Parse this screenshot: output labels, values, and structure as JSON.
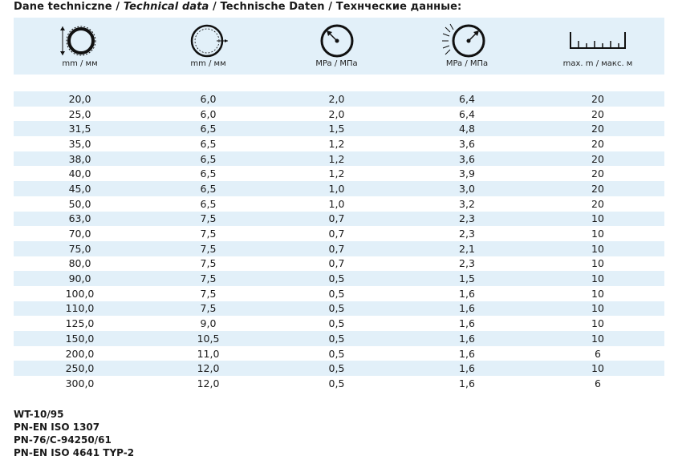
{
  "title": {
    "part1": "Dane techniczne / ",
    "part2": "Technical data",
    "part3": " / Technische Daten / Технческие данные:"
  },
  "columns": [
    {
      "icon": "inner-diameter-icon",
      "unit": "mm / мм"
    },
    {
      "icon": "wall-thickness-icon",
      "unit": "mm / мм"
    },
    {
      "icon": "working-pressure-gauge-icon",
      "unit": "MPa / МПа"
    },
    {
      "icon": "burst-pressure-gauge-icon",
      "unit": "MPa / МПа"
    },
    {
      "icon": "length-ruler-icon",
      "unit": "max. m / макс. м"
    }
  ],
  "rows": [
    [
      "20,0",
      "6,0",
      "2,0",
      "6,4",
      "20"
    ],
    [
      "25,0",
      "6,0",
      "2,0",
      "6,4",
      "20"
    ],
    [
      "31,5",
      "6,5",
      "1,5",
      "4,8",
      "20"
    ],
    [
      "35,0",
      "6,5",
      "1,2",
      "3,6",
      "20"
    ],
    [
      "38,0",
      "6,5",
      "1,2",
      "3,6",
      "20"
    ],
    [
      "40,0",
      "6,5",
      "1,2",
      "3,9",
      "20"
    ],
    [
      "45,0",
      "6,5",
      "1,0",
      "3,0",
      "20"
    ],
    [
      "50,0",
      "6,5",
      "1,0",
      "3,2",
      "20"
    ],
    [
      "63,0",
      "7,5",
      "0,7",
      "2,3",
      "10"
    ],
    [
      "70,0",
      "7,5",
      "0,7",
      "2,3",
      "10"
    ],
    [
      "75,0",
      "7,5",
      "0,7",
      "2,1",
      "10"
    ],
    [
      "80,0",
      "7,5",
      "0,7",
      "2,3",
      "10"
    ],
    [
      "90,0",
      "7,5",
      "0,5",
      "1,5",
      "10"
    ],
    [
      "100,0",
      "7,5",
      "0,5",
      "1,6",
      "10"
    ],
    [
      "110,0",
      "7,5",
      "0,5",
      "1,6",
      "10"
    ],
    [
      "125,0",
      "9,0",
      "0,5",
      "1,6",
      "10"
    ],
    [
      "150,0",
      "10,5",
      "0,5",
      "1,6",
      "10"
    ],
    [
      "200,0",
      "11,0",
      "0,5",
      "1,6",
      "6"
    ],
    [
      "250,0",
      "12,0",
      "0,5",
      "1,6",
      "10"
    ],
    [
      "300,0",
      "12,0",
      "0,5",
      "1,6",
      "6"
    ]
  ],
  "notes": [
    "WT-10/95",
    "PN-EN ISO 1307",
    "PN-76/C-94250/61",
    "PN-EN ISO 4641 TYP-2"
  ],
  "colors": {
    "stripe": "#e2f0f9",
    "text": "#1a1a1a"
  }
}
